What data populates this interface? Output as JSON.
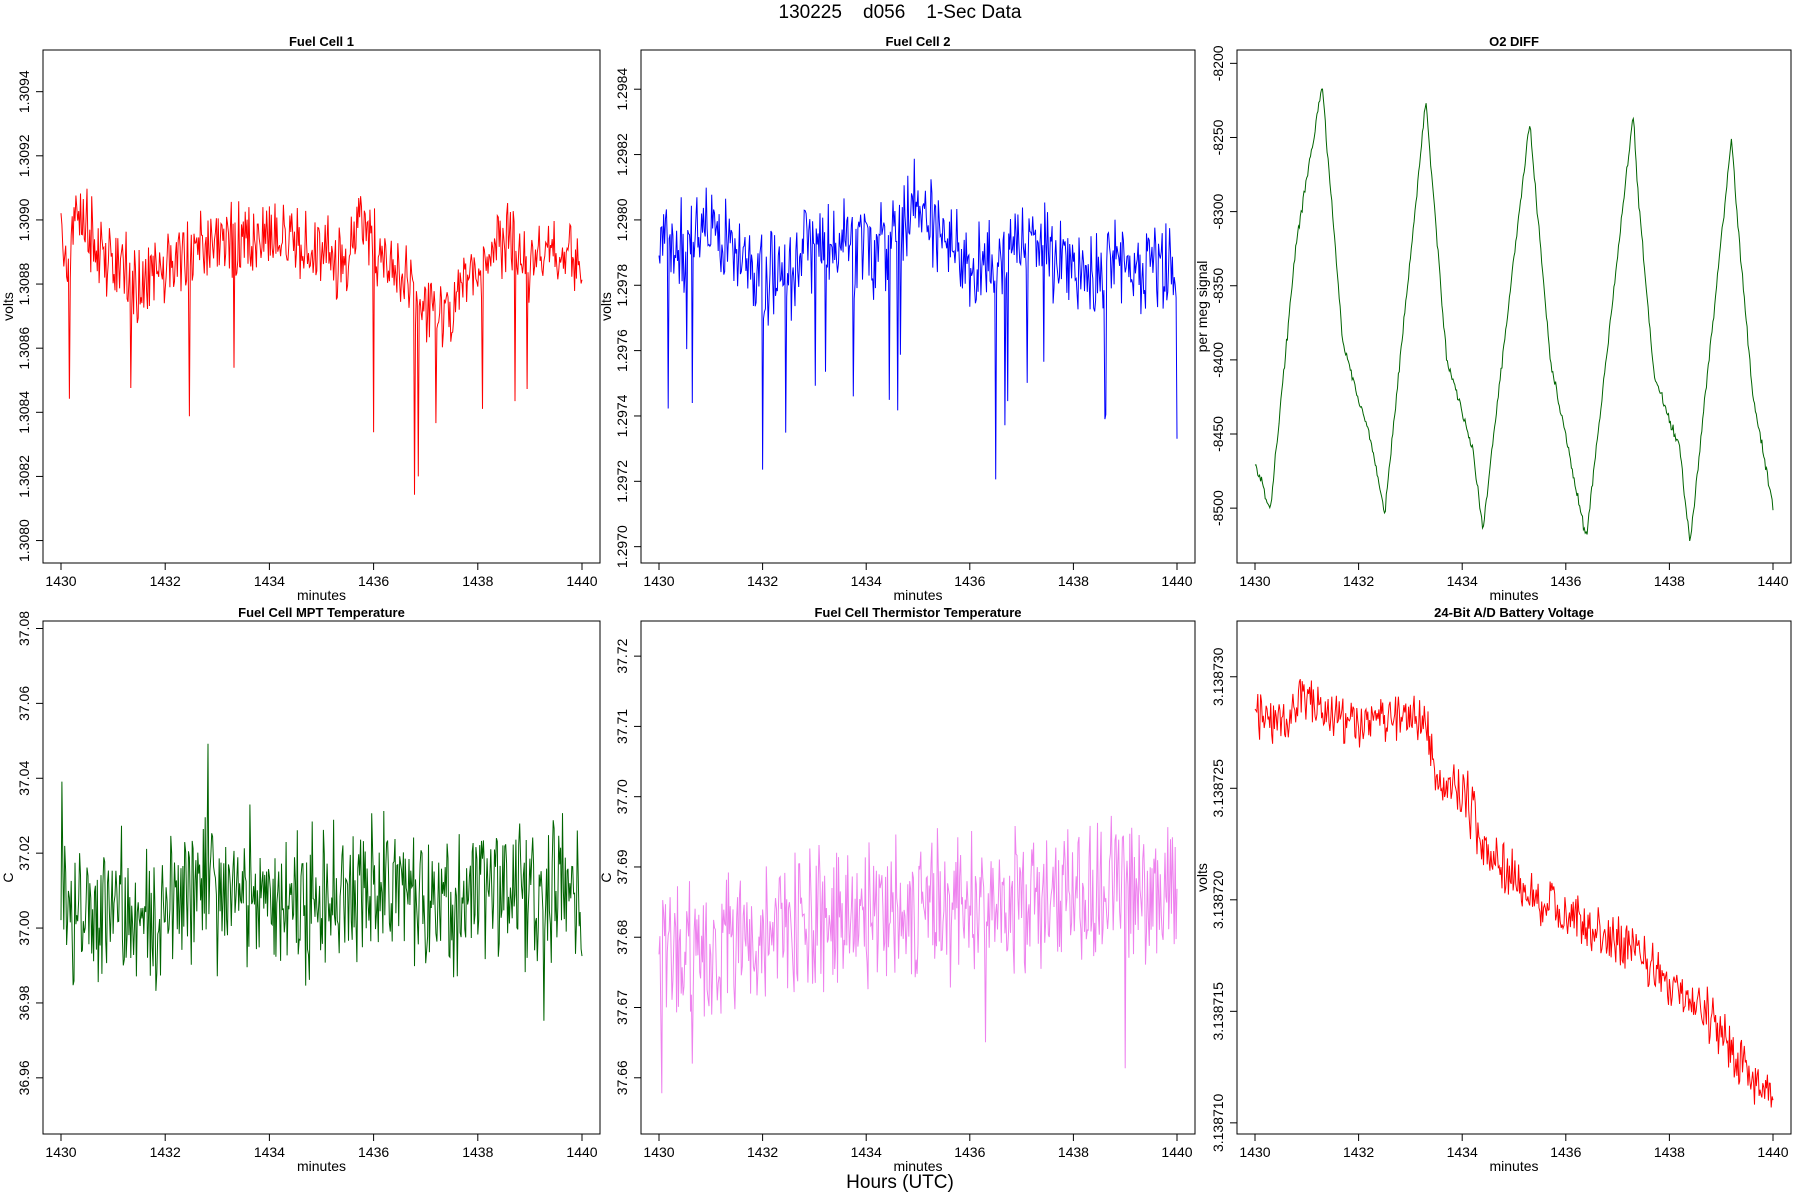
{
  "header": {
    "title": "130225    d056    1-Sec Data"
  },
  "footer": {
    "xlabel": "Hours (UTC)"
  },
  "chart_data": [
    {
      "type": "line",
      "title": "Fuel Cell 1",
      "xlabel": "minutes",
      "ylabel": "volts",
      "color": "#ff0000",
      "xlim": [
        1430,
        1440
      ],
      "ylim": [
        1.30793,
        1.30953
      ],
      "xticks": [
        1430,
        1432,
        1434,
        1436,
        1438,
        1440
      ],
      "yticks": [
        1.308,
        1.3082,
        1.3084,
        1.3086,
        1.3088,
        1.309,
        1.3092,
        1.3094
      ],
      "ytick_labels": [
        "1.3080",
        "1.3082",
        "1.3084",
        "1.3086",
        "1.3088",
        "1.3090",
        "1.3092",
        "1.3094"
      ],
      "series": [
        {
          "x": [
            1430.0,
            1430.1,
            1430.2,
            1430.4,
            1430.6,
            1430.8,
            1431.0,
            1431.5,
            1432.0,
            1432.5,
            1433.0,
            1433.5,
            1434.0,
            1434.5,
            1435.0,
            1435.5,
            1435.7,
            1436.0,
            1436.5,
            1437.0,
            1437.5,
            1438.0,
            1438.5,
            1439.0,
            1439.5,
            1440.0
          ],
          "y": [
            1.30905,
            1.30885,
            1.30895,
            1.30903,
            1.30893,
            1.30887,
            1.30885,
            1.3088,
            1.30886,
            1.30888,
            1.30894,
            1.30893,
            1.30895,
            1.30893,
            1.3089,
            1.30885,
            1.30905,
            1.3089,
            1.3088,
            1.30873,
            1.3087,
            1.30886,
            1.30895,
            1.30883,
            1.3089,
            1.30887
          ]
        }
      ]
    },
    {
      "type": "line",
      "title": "Fuel Cell 2",
      "xlabel": "minutes",
      "ylabel": "volts",
      "color": "#0000ff",
      "xlim": [
        1430,
        1440
      ],
      "ylim": [
        1.29695,
        1.29852
      ],
      "xticks": [
        1430,
        1432,
        1434,
        1436,
        1438,
        1440
      ],
      "yticks": [
        1.297,
        1.2972,
        1.2974,
        1.2976,
        1.2978,
        1.298,
        1.2982,
        1.2984
      ],
      "ytick_labels": [
        "1.2970",
        "1.2972",
        "1.2974",
        "1.2976",
        "1.2978",
        "1.2980",
        "1.2982",
        "1.2984"
      ],
      "series": [
        {
          "x": [
            1430.0,
            1430.5,
            1431.0,
            1431.5,
            1432.0,
            1432.5,
            1433.0,
            1433.5,
            1434.0,
            1434.5,
            1435.0,
            1435.5,
            1436.0,
            1436.5,
            1437.0,
            1437.5,
            1438.0,
            1438.5,
            1439.0,
            1439.5,
            1440.0
          ],
          "y": [
            1.29795,
            1.2979,
            1.298,
            1.2979,
            1.2978,
            1.29785,
            1.29795,
            1.29795,
            1.2979,
            1.29795,
            1.29805,
            1.29795,
            1.29785,
            1.29785,
            1.29795,
            1.2979,
            1.29785,
            1.29785,
            1.2979,
            1.29785,
            1.29785
          ]
        }
      ]
    },
    {
      "type": "line",
      "title": "O2 DIFF",
      "xlabel": "minutes",
      "ylabel": "per meg signal",
      "color": "#006400",
      "xlim": [
        1430,
        1440
      ],
      "ylim": [
        -8537,
        -8191
      ],
      "xticks": [
        1430,
        1432,
        1434,
        1436,
        1438,
        1440
      ],
      "yticks": [
        -8500,
        -8450,
        -8400,
        -8350,
        -8300,
        -8250,
        -8200
      ],
      "ytick_labels": [
        "-8500",
        "-8450",
        "-8400",
        "-8350",
        "-8300",
        "-8250",
        "-8200"
      ],
      "series": [
        {
          "x": [
            1430.0,
            1430.3,
            1430.8,
            1431.3,
            1431.4,
            1431.7,
            1432.2,
            1432.5,
            1433.3,
            1433.4,
            1433.7,
            1434.2,
            1434.4,
            1435.3,
            1435.4,
            1435.7,
            1436.3,
            1436.4,
            1437.3,
            1437.4,
            1437.7,
            1438.2,
            1438.4,
            1439.2,
            1439.3,
            1439.6,
            1440.0
          ],
          "y": [
            -8470,
            -8500,
            -8320,
            -8215,
            -8260,
            -8390,
            -8450,
            -8505,
            -8225,
            -8270,
            -8400,
            -8460,
            -8515,
            -8240,
            -8280,
            -8400,
            -8505,
            -8520,
            -8235,
            -8290,
            -8410,
            -8460,
            -8525,
            -8250,
            -8300,
            -8420,
            -8500
          ]
        }
      ]
    },
    {
      "type": "line",
      "title": "Fuel Cell MPT Temperature",
      "xlabel": "minutes",
      "ylabel": "C",
      "color": "#006400",
      "xlim": [
        1430,
        1440
      ],
      "ylim": [
        36.945,
        37.082
      ],
      "xticks": [
        1430,
        1432,
        1434,
        1436,
        1438,
        1440
      ],
      "yticks": [
        36.96,
        36.98,
        37.0,
        37.02,
        37.04,
        37.06,
        37.08
      ],
      "ytick_labels": [
        "36.96",
        "36.98",
        "37.00",
        "37.02",
        "37.04",
        "37.06",
        "37.08"
      ],
      "series": [
        {
          "x": [
            1430,
            1431,
            1432,
            1433,
            1434,
            1435,
            1436,
            1437,
            1438,
            1439,
            1440
          ],
          "y": [
            37.005,
            37.005,
            37.005,
            37.01,
            37.01,
            37.008,
            37.01,
            37.006,
            37.008,
            37.008,
            37.005
          ]
        }
      ]
    },
    {
      "type": "line",
      "title": "Fuel Cell Thermistor Temperature",
      "xlabel": "minutes",
      "ylabel": "C",
      "color": "#ee82ee",
      "xlim": [
        1430,
        1440
      ],
      "ylim": [
        37.652,
        37.725
      ],
      "xticks": [
        1430,
        1432,
        1434,
        1436,
        1438,
        1440
      ],
      "yticks": [
        37.66,
        37.67,
        37.68,
        37.69,
        37.7,
        37.71,
        37.72
      ],
      "ytick_labels": [
        "37.66",
        "37.67",
        "37.68",
        "37.69",
        "37.70",
        "37.71",
        "37.72"
      ],
      "series": [
        {
          "x": [
            1430,
            1431,
            1432,
            1433,
            1434,
            1435,
            1436,
            1437,
            1438,
            1439,
            1440
          ],
          "y": [
            37.678,
            37.679,
            37.681,
            37.682,
            37.683,
            37.684,
            37.684,
            37.685,
            37.686,
            37.686,
            37.686
          ]
        }
      ]
    },
    {
      "type": "line",
      "title": "24-Bit A/D Battery Voltage",
      "xlabel": "minutes",
      "ylabel": "volts",
      "color": "#ff0000",
      "xlim": [
        1430,
        1440
      ],
      "ylim": [
        3.1387095,
        3.1387325
      ],
      "xticks": [
        1430,
        1432,
        1434,
        1436,
        1438,
        1440
      ],
      "yticks": [
        3.13871,
        3.138715,
        3.13872,
        3.138725,
        3.13873
      ],
      "ytick_labels": [
        "3.138710",
        "3.138715",
        "3.138720",
        "3.138725",
        "3.138730"
      ],
      "series": [
        {
          "x": [
            1430.0,
            1430.5,
            1431.0,
            1431.5,
            1432.0,
            1432.5,
            1433.0,
            1433.3,
            1433.5,
            1434.0,
            1434.5,
            1435.0,
            1435.5,
            1436.0,
            1436.5,
            1437.0,
            1437.5,
            1438.0,
            1438.5,
            1439.0,
            1439.5,
            1440.0
          ],
          "y": [
            3.1387285,
            3.138728,
            3.138729,
            3.138728,
            3.138728,
            3.138728,
            3.138728,
            3.138728,
            3.1387255,
            3.138725,
            3.138722,
            3.138721,
            3.13872,
            3.1387195,
            3.1387185,
            3.138718,
            3.1387175,
            3.138716,
            3.1387155,
            3.138714,
            3.138712,
            3.138711
          ]
        }
      ]
    }
  ]
}
